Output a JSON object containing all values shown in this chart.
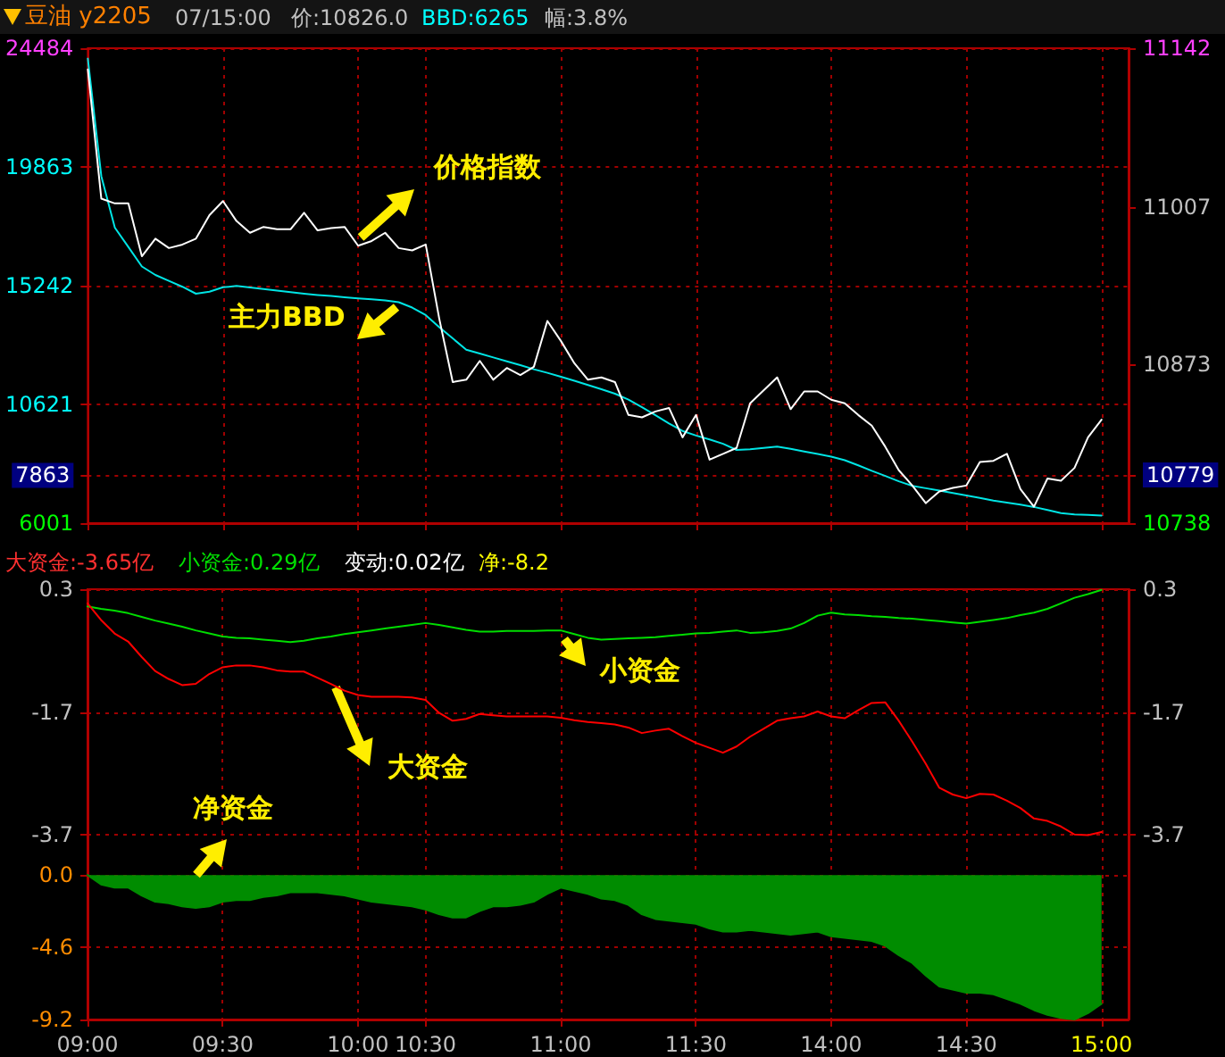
{
  "chart_data": [
    {
      "type": "line",
      "title": "豆油 y2205",
      "annotations": [
        "07/15:00",
        "价:10826.0",
        "BBD:6265",
        "幅:3.8%"
      ],
      "categories": [
        null,
        null,
        null,
        null,
        null,
        null,
        null,
        null,
        null,
        null,
        null,
        null,
        null,
        null,
        null,
        null,
        null,
        null,
        null,
        null,
        null,
        null,
        null,
        null,
        null,
        null,
        null,
        null,
        null,
        null,
        null,
        null,
        null,
        null,
        null,
        null,
        null,
        null,
        null,
        null,
        null,
        null,
        null,
        null,
        null,
        null,
        null,
        null,
        null,
        null,
        null,
        null,
        null,
        null,
        null,
        null,
        null,
        null,
        null,
        null,
        null,
        null,
        null,
        null,
        null,
        null,
        null,
        null,
        null,
        null,
        null,
        null,
        null,
        null,
        null,
        null,
        null,
        null
      ],
      "ylim": [
        6001,
        24484
      ],
      "yticks": [
        24484,
        19863,
        15242,
        10621,
        7863,
        6001
      ],
      "y2lim": [
        10738,
        11142
      ],
      "y2ticks": [
        11142,
        11007,
        10873,
        10779,
        10738
      ],
      "tick_labels": "y",
      "grid": true,
      "legend": false,
      "marker": "none",
      "line_style": "solid",
      "series": [
        {
          "name": "价格指数",
          "color": "#ffffff",
          "axis": "y2",
          "values": [
            11124,
            11014,
            11010,
            11010,
            10965,
            10980,
            10972,
            10975,
            10980,
            11000,
            11012,
            10995,
            10985,
            10990,
            10988,
            10988,
            11002,
            10987,
            10989,
            10990,
            10974,
            10978,
            10985,
            10972,
            10970,
            10975,
            10912,
            10858,
            10860,
            10876,
            10860,
            10870,
            10864,
            10871,
            10910,
            10893,
            10874,
            10860,
            10862,
            10858,
            10830,
            10828,
            10833,
            10836,
            10811,
            10830,
            10792,
            10797,
            10802,
            10840,
            10851,
            10862,
            10835,
            10850,
            10850,
            10843,
            10840,
            10830,
            10821,
            10803,
            10783,
            10770,
            10755,
            10765,
            10768,
            10770,
            10790,
            10791,
            10797,
            10767,
            10752,
            10776,
            10774,
            10785,
            10811,
            10826,
            null,
            null
          ]
        },
        {
          "name": "主力BBD",
          "color": "#00e5e5",
          "values": [
            24080,
            19500,
            17500,
            16750,
            15990,
            15660,
            15430,
            15200,
            14930,
            15010,
            15180,
            15230,
            15170,
            15110,
            15050,
            14990,
            14930,
            14880,
            14840,
            14790,
            14750,
            14710,
            14670,
            14600,
            14390,
            14100,
            13630,
            13190,
            12750,
            12600,
            12450,
            12300,
            12150,
            11990,
            11850,
            11700,
            11540,
            11380,
            11210,
            11040,
            10810,
            10510,
            10200,
            9880,
            9590,
            9410,
            9260,
            9090,
            8850,
            8880,
            8930,
            8980,
            8890,
            8790,
            8690,
            8590,
            8450,
            8250,
            8040,
            7840,
            7630,
            7450,
            7360,
            7270,
            7170,
            7080,
            6980,
            6880,
            6800,
            6720,
            6630,
            6510,
            6390,
            6340,
            6320,
            6300,
            null,
            null
          ]
        }
      ]
    },
    {
      "type": "line",
      "annotations": [
        "大资金:-3.65亿",
        "小资金:0.29亿",
        "变动:0.02亿",
        "净:-8.2"
      ],
      "categories": [
        "09:00",
        null,
        null,
        null,
        null,
        null,
        null,
        null,
        null,
        null,
        "09:30",
        null,
        null,
        null,
        null,
        null,
        null,
        null,
        null,
        null,
        "10:00",
        null,
        null,
        null,
        null,
        "10:30",
        null,
        null,
        null,
        null,
        null,
        null,
        null,
        null,
        null,
        "11:00",
        null,
        null,
        null,
        null,
        null,
        null,
        null,
        null,
        null,
        "11:30",
        null,
        null,
        null,
        null,
        null,
        null,
        null,
        null,
        null,
        "14:00",
        null,
        null,
        null,
        null,
        null,
        null,
        null,
        null,
        null,
        "14:30",
        null,
        null,
        null,
        null,
        null,
        null,
        null,
        null,
        null,
        "15:00",
        null,
        null
      ],
      "ylim": [
        -6.7,
        0.3
      ],
      "yticks": [
        0.3,
        -1.7,
        -3.7
      ],
      "y2lim": [
        -6.7,
        0.3
      ],
      "y2ticks": [
        0.3,
        -1.7,
        -3.7
      ],
      "y3lim": [
        -9.2,
        18.2
      ],
      "y3ticks": [
        {
          "value": 0,
          "label": "0.0"
        },
        -4.6,
        -9.2
      ],
      "grid": true,
      "legend": false,
      "marker": "none",
      "line_style": "solid",
      "series": [
        {
          "name": "大资金",
          "color": "#ff0000",
          "values": [
            0.07,
            -0.2,
            -0.42,
            -0.55,
            -0.8,
            -1.03,
            -1.16,
            -1.26,
            -1.24,
            -1.08,
            -0.97,
            -0.94,
            -0.94,
            -0.97,
            -1.02,
            -1.04,
            -1.04,
            -1.14,
            -1.24,
            -1.35,
            -1.42,
            -1.45,
            -1.45,
            -1.45,
            -1.46,
            -1.5,
            -1.71,
            -1.84,
            -1.81,
            -1.73,
            -1.75,
            -1.77,
            -1.77,
            -1.77,
            -1.77,
            -1.79,
            -1.83,
            -1.86,
            -1.88,
            -1.9,
            -1.95,
            -2.04,
            -2.0,
            -1.97,
            -2.09,
            -2.2,
            -2.28,
            -2.36,
            -2.26,
            -2.1,
            -1.97,
            -1.84,
            -1.8,
            -1.77,
            -1.69,
            -1.77,
            -1.8,
            -1.67,
            -1.55,
            -1.54,
            -1.84,
            -2.18,
            -2.54,
            -2.93,
            -3.04,
            -3.1,
            -3.03,
            -3.04,
            -3.14,
            -3.26,
            -3.43,
            -3.47,
            -3.56,
            -3.69,
            -3.7,
            -3.65,
            null,
            null
          ]
        },
        {
          "name": "小资金",
          "color": "#00dd00",
          "values": [
            0.02,
            -0.02,
            -0.05,
            -0.09,
            -0.15,
            -0.21,
            -0.26,
            -0.31,
            -0.37,
            -0.42,
            -0.47,
            -0.49,
            -0.5,
            -0.52,
            -0.54,
            -0.56,
            -0.54,
            -0.5,
            -0.47,
            -0.43,
            -0.4,
            -0.37,
            -0.34,
            -0.31,
            -0.28,
            -0.25,
            -0.28,
            -0.32,
            -0.36,
            -0.39,
            -0.39,
            -0.38,
            -0.38,
            -0.38,
            -0.37,
            -0.37,
            -0.43,
            -0.49,
            -0.52,
            -0.51,
            -0.5,
            -0.49,
            -0.48,
            -0.46,
            -0.44,
            -0.42,
            -0.41,
            -0.39,
            -0.37,
            -0.41,
            -0.4,
            -0.38,
            -0.34,
            -0.25,
            -0.13,
            -0.08,
            -0.11,
            -0.12,
            -0.14,
            -0.15,
            -0.17,
            -0.18,
            -0.2,
            -0.22,
            -0.24,
            -0.26,
            -0.23,
            -0.2,
            -0.17,
            -0.12,
            -0.08,
            -0.02,
            0.07,
            0.16,
            0.22,
            0.29,
            null,
            null
          ]
        },
        {
          "name": "净资金",
          "type": "area",
          "color": "#008c00",
          "axis": "y3",
          "values": [
            0,
            -0.6,
            -0.8,
            -0.8,
            -1.3,
            -1.7,
            -1.8,
            -2.0,
            -2.1,
            -2.0,
            -1.7,
            -1.6,
            -1.6,
            -1.4,
            -1.3,
            -1.1,
            -1.1,
            -1.1,
            -1.2,
            -1.3,
            -1.5,
            -1.7,
            -1.8,
            -1.9,
            -2.0,
            -2.2,
            -2.5,
            -2.7,
            -2.7,
            -2.3,
            -2.0,
            -2.0,
            -1.9,
            -1.7,
            -1.2,
            -0.8,
            -1.0,
            -1.2,
            -1.5,
            -1.6,
            -1.9,
            -2.5,
            -2.8,
            -2.9,
            -3.0,
            -3.1,
            -3.4,
            -3.6,
            -3.6,
            -3.5,
            -3.6,
            -3.7,
            -3.8,
            -3.7,
            -3.6,
            -3.9,
            -4.0,
            -4.1,
            -4.2,
            -4.5,
            -5.1,
            -5.6,
            -6.4,
            -7.1,
            -7.3,
            -7.5,
            -7.5,
            -7.6,
            -7.9,
            -8.2,
            -8.6,
            -8.9,
            -9.1,
            -9.2,
            -8.8,
            -8.2,
            null,
            null
          ]
        }
      ]
    }
  ]
}
